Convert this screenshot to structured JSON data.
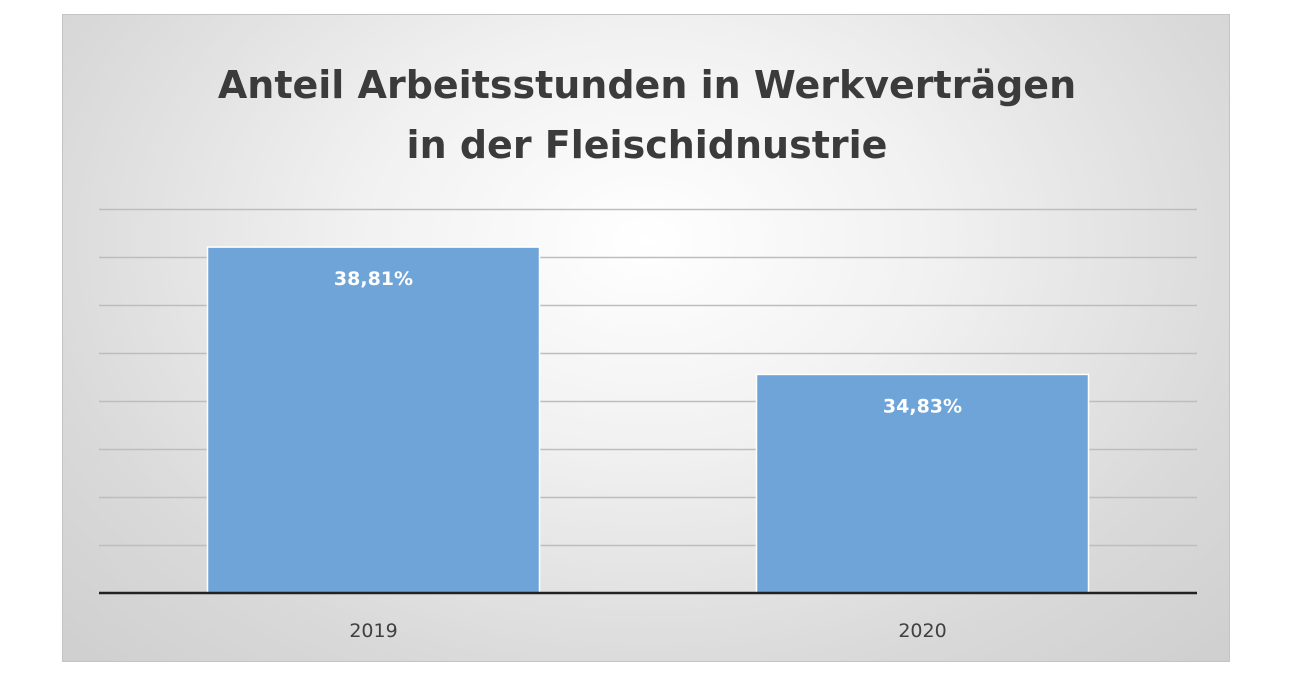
{
  "chart_data": {
    "type": "bar",
    "title_lines": [
      "Anteil Arbeitsstunden in Werkverträgen",
      "in der Fleischidnustrie"
    ],
    "categories": [
      "2019",
      "2020"
    ],
    "values": [
      38.81,
      34.83
    ],
    "data_labels": [
      "38,81%",
      "34,83%"
    ],
    "xlabel": "",
    "ylabel": "",
    "ylim": [
      28,
      40
    ],
    "grid_step": 1.5,
    "grid": true,
    "legend": "none",
    "bar_color": "#6fa4d8"
  }
}
